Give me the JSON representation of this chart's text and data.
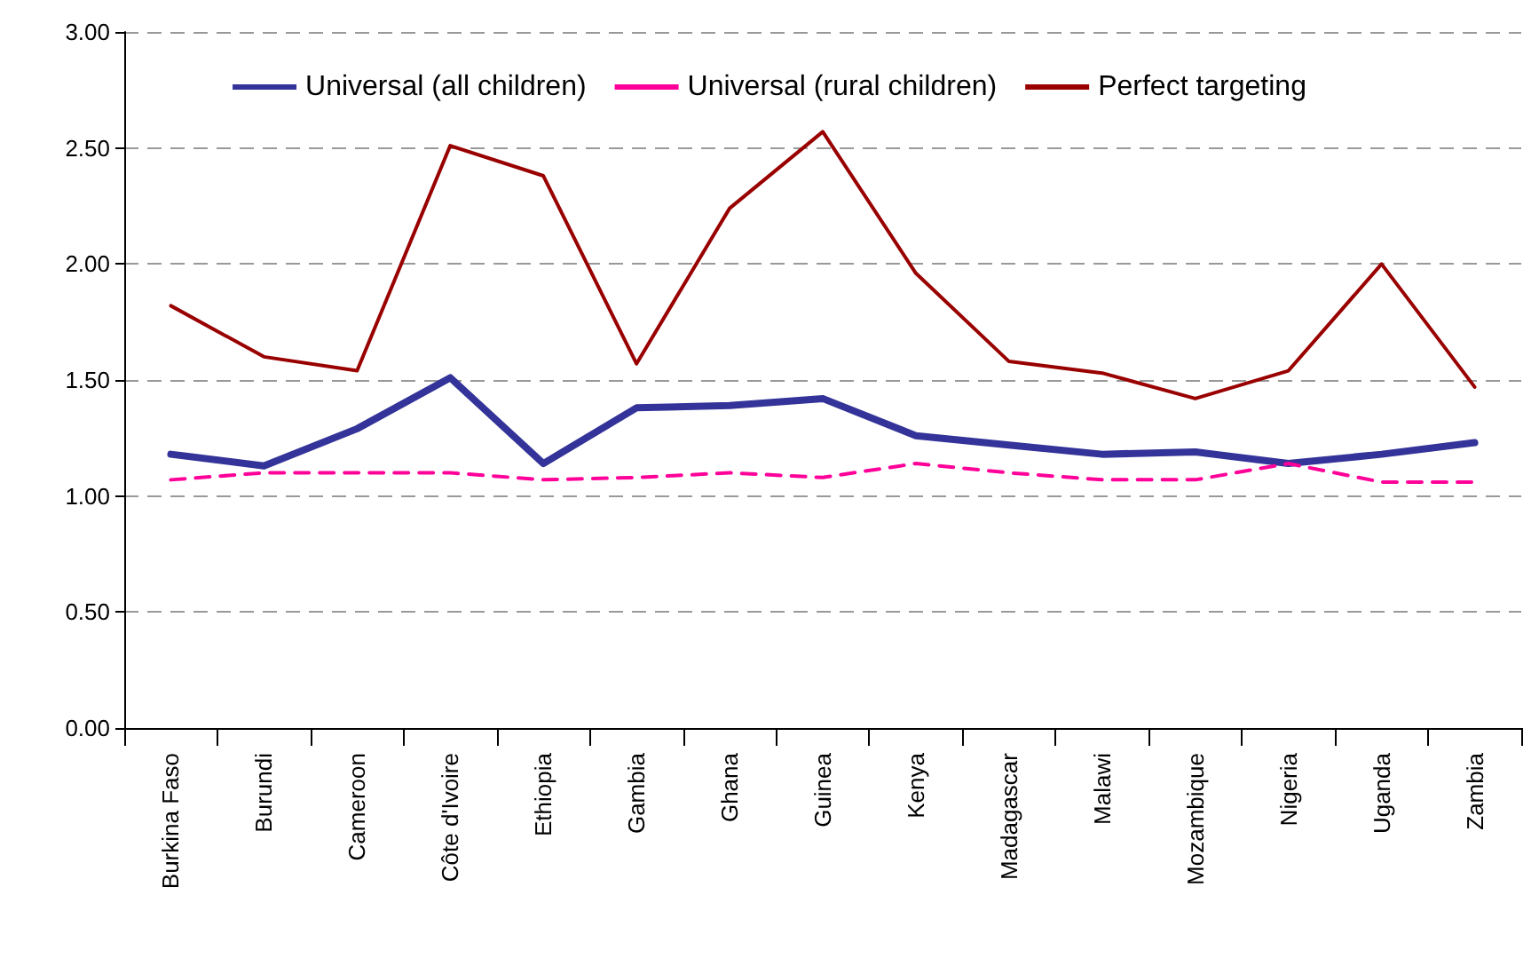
{
  "chart_data": {
    "type": "line",
    "categories": [
      "Burkina Faso",
      "Burundi",
      "Cameroon",
      "Côte d'Ivoire",
      "Ethiopia",
      "Gambia",
      "Ghana",
      "Guinea",
      "Kenya",
      "Madagascar",
      "Malawi",
      "Mozambique",
      "Nigeria",
      "Uganda",
      "Zambia"
    ],
    "series": [
      {
        "name": "Universal (all children)",
        "color": "#333399",
        "line_style": "solid",
        "values": [
          1.18,
          1.13,
          1.29,
          1.51,
          1.14,
          1.38,
          1.39,
          1.42,
          1.26,
          1.22,
          1.18,
          1.19,
          1.14,
          1.18,
          1.23
        ]
      },
      {
        "name": "Universal (rural children)",
        "color": "#ff0099",
        "line_style": "dashed",
        "values": [
          1.07,
          1.1,
          1.1,
          1.1,
          1.07,
          1.08,
          1.1,
          1.08,
          1.14,
          1.1,
          1.07,
          1.07,
          1.14,
          1.06,
          1.06
        ]
      },
      {
        "name": "Perfect targeting",
        "color": "#990000",
        "line_style": "solid",
        "values": [
          1.82,
          1.6,
          1.54,
          2.51,
          2.38,
          1.57,
          2.24,
          2.57,
          1.96,
          1.58,
          1.53,
          1.42,
          1.54,
          2.0,
          1.47
        ]
      }
    ],
    "ylim": [
      0,
      3
    ],
    "yticks": [
      {
        "value": 0,
        "label": "0.00"
      },
      {
        "value": 0.5,
        "label": "0.50"
      },
      {
        "value": 1,
        "label": "1.00"
      },
      {
        "value": 1.5,
        "label": "1.50"
      },
      {
        "value": 2,
        "label": "2.00"
      },
      {
        "value": 2.5,
        "label": "2.50"
      },
      {
        "value": 3,
        "label": "3.00"
      }
    ],
    "grid": "y",
    "legend": "top",
    "marker": "none"
  }
}
